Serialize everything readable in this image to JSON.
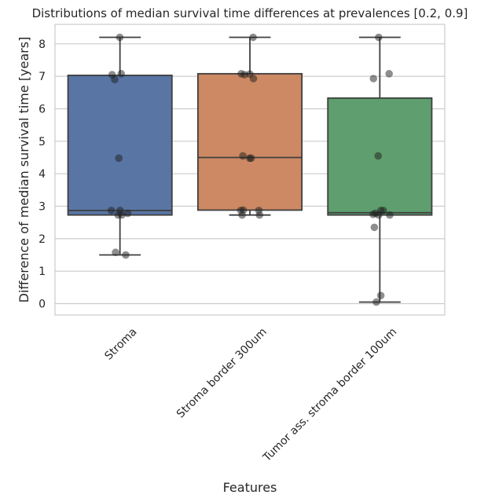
{
  "chart_data": {
    "type": "box",
    "title": "Distributions of median survival time differences at prevalences [0.2, 0.9]",
    "xlabel": "Features",
    "ylabel": "Difference of median survival time [years]",
    "ylim": [
      -0.35,
      8.6
    ],
    "yticks": [
      0,
      1,
      2,
      3,
      4,
      5,
      6,
      7,
      8
    ],
    "grid": true,
    "categories": [
      "Stroma",
      "Stroma border 300um",
      "Tumor ass. stroma border 100um"
    ],
    "colors": [
      "#5875a4",
      "#cc8963",
      "#5f9e6e"
    ],
    "boxes": [
      {
        "whisker_low": 1.5,
        "q1": 2.73,
        "median": 2.87,
        "q3": 7.03,
        "whisker_high": 8.2
      },
      {
        "whisker_low": 2.73,
        "q1": 2.88,
        "median": 4.5,
        "q3": 7.08,
        "whisker_high": 8.2
      },
      {
        "whisker_low": 0.05,
        "q1": 2.73,
        "median": 2.8,
        "q3": 6.33,
        "whisker_high": 8.2
      }
    ],
    "points": [
      [
        8.2,
        7.08,
        7.05,
        6.9,
        4.48,
        2.87,
        2.87,
        2.78,
        2.73,
        2.73,
        1.58,
        1.5
      ],
      [
        8.2,
        7.08,
        7.07,
        7.05,
        6.93,
        4.55,
        4.48,
        4.48,
        2.88,
        2.87,
        2.87,
        2.73,
        2.73
      ],
      [
        8.2,
        7.08,
        6.93,
        4.55,
        2.87,
        2.87,
        2.78,
        2.75,
        2.73,
        2.73,
        2.35,
        0.25,
        0.05
      ]
    ]
  }
}
